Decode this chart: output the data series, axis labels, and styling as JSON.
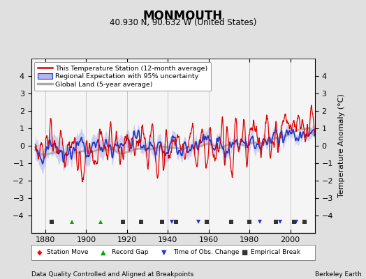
{
  "title": "MONMOUTH",
  "subtitle": "40.930 N, 90.632 W (United States)",
  "footer_left": "Data Quality Controlled and Aligned at Breakpoints",
  "footer_right": "Berkeley Earth",
  "ylabel": "Temperature Anomaly (°C)",
  "xlim": [
    1873,
    2012
  ],
  "ylim": [
    -5,
    5
  ],
  "yticks": [
    -4,
    -3,
    -2,
    -1,
    0,
    1,
    2,
    3,
    4
  ],
  "xticks": [
    1880,
    1900,
    1920,
    1940,
    1960,
    1980,
    2000
  ],
  "bg_color": "#e0e0e0",
  "plot_bg_color": "#f5f5f5",
  "line_color_station": "#dd0000",
  "line_color_regional": "#2233cc",
  "fill_color_regional": "#b0b8ee",
  "line_color_global": "#aaaaaa",
  "seed": 17,
  "record_gaps": [
    1893,
    1907
  ],
  "obs_changes": [
    1942,
    1955,
    1985,
    1995,
    2003
  ],
  "empirical_breaks": [
    1883,
    1918,
    1927,
    1937,
    1944,
    1959,
    1971,
    1980,
    1993,
    2002,
    2007
  ],
  "legend_line_color": "#dd0000",
  "legend_fill_color": "#b0b8ee",
  "legend_global_color": "#aaaaaa"
}
